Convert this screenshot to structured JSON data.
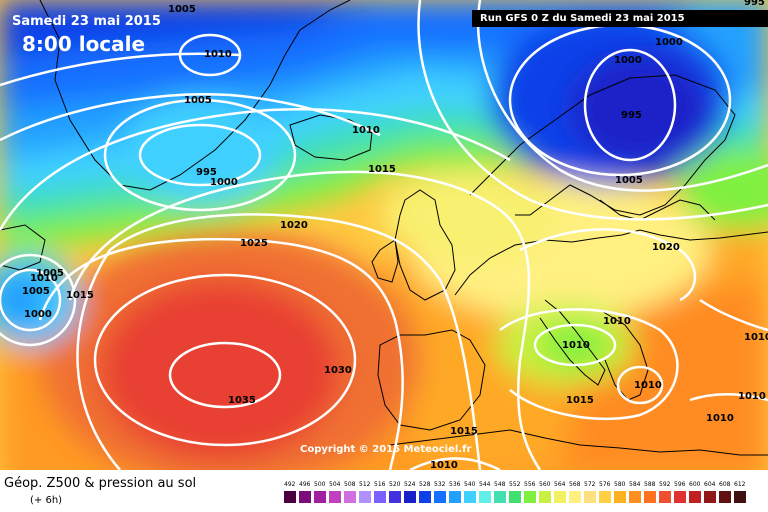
{
  "header": {
    "date": "Samedi 23 mai 2015",
    "time": "8:00 locale",
    "run_info": "Run GFS 0 Z du Samedi 23 mai 2015",
    "copyright": "Copyright © 2015 Meteociel.fr"
  },
  "legend": {
    "title": "Géop. Z500 & pression au sol",
    "subtitle": "(+ 6h)",
    "scale": [
      {
        "value": "492",
        "color": "#4b0040"
      },
      {
        "value": "496",
        "color": "#7a0d7a"
      },
      {
        "value": "500",
        "color": "#a020a0"
      },
      {
        "value": "504",
        "color": "#c040c0"
      },
      {
        "value": "508",
        "color": "#d070e0"
      },
      {
        "value": "512",
        "color": "#b090ff"
      },
      {
        "value": "516",
        "color": "#7a60ff"
      },
      {
        "value": "520",
        "color": "#4030e0"
      },
      {
        "value": "524",
        "color": "#1a20c8"
      },
      {
        "value": "528",
        "color": "#1040e8"
      },
      {
        "value": "532",
        "color": "#1470ff"
      },
      {
        "value": "536",
        "color": "#20a0ff"
      },
      {
        "value": "540",
        "color": "#40d0ff"
      },
      {
        "value": "544",
        "color": "#60f0e8"
      },
      {
        "value": "548",
        "color": "#40e0b0"
      },
      {
        "value": "552",
        "color": "#40e070"
      },
      {
        "value": "556",
        "color": "#80f040"
      },
      {
        "value": "560",
        "color": "#c8f040"
      },
      {
        "value": "564",
        "color": "#f0f060"
      },
      {
        "value": "568",
        "color": "#fff080"
      },
      {
        "value": "572",
        "color": "#ffe080"
      },
      {
        "value": "576",
        "color": "#ffd040"
      },
      {
        "value": "580",
        "color": "#ffb020"
      },
      {
        "value": "584",
        "color": "#ff9020"
      },
      {
        "value": "588",
        "color": "#ff7020"
      },
      {
        "value": "592",
        "color": "#f05030"
      },
      {
        "value": "596",
        "color": "#e03030"
      },
      {
        "value": "600",
        "color": "#c02020"
      },
      {
        "value": "604",
        "color": "#901818"
      },
      {
        "value": "608",
        "color": "#601010"
      },
      {
        "value": "612",
        "color": "#401010"
      }
    ]
  },
  "isobars": [
    {
      "label": "1005"
    },
    {
      "label": "1010"
    },
    {
      "label": "1005"
    },
    {
      "label": "995"
    },
    {
      "label": "1000"
    },
    {
      "label": "1010"
    },
    {
      "label": "1015"
    },
    {
      "label": "1025"
    },
    {
      "label": "1020"
    },
    {
      "label": "1010"
    },
    {
      "label": "1005"
    },
    {
      "label": "1000"
    },
    {
      "label": "1015"
    },
    {
      "label": "1030"
    },
    {
      "label": "1035"
    },
    {
      "label": "1000"
    },
    {
      "label": "1000"
    },
    {
      "label": "995"
    },
    {
      "label": "1005"
    },
    {
      "label": "1020"
    },
    {
      "label": "1010"
    },
    {
      "label": "1010"
    },
    {
      "label": "1015"
    },
    {
      "label": "1010"
    },
    {
      "label": "1015"
    },
    {
      "label": "1010"
    },
    {
      "label": "1010"
    },
    {
      "label": "1010"
    },
    {
      "label": "1010"
    },
    {
      "label": "1005"
    },
    {
      "label": "995"
    }
  ]
}
